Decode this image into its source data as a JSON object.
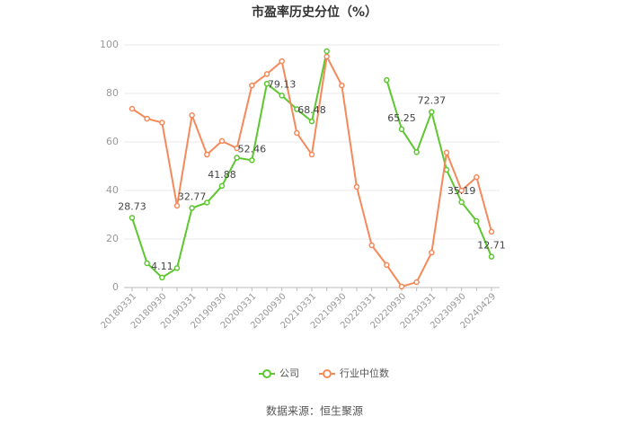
{
  "chart_data": {
    "type": "line",
    "title": "市盈率历史分位（%）",
    "categories": [
      "20180331",
      null,
      "20180930",
      null,
      "20190331",
      null,
      "20190930",
      null,
      "20200331",
      null,
      "20200930",
      null,
      "20210331",
      null,
      "20210930",
      null,
      "20220331",
      null,
      "20220930",
      null,
      "20230331",
      null,
      "20230930",
      null,
      "20240429"
    ],
    "series": [
      {
        "name": "公司",
        "color": "#5cc72e",
        "values": [
          28.73,
          10,
          4.11,
          8,
          32.77,
          35,
          41.88,
          53.5,
          52.46,
          84,
          79.13,
          73.5,
          68.48,
          97.4,
          null,
          null,
          null,
          85.5,
          65.25,
          55.8,
          72.37,
          48.5,
          35.19,
          27.4,
          12.71
        ],
        "value_labels": [
          "28.73",
          null,
          "4.11",
          null,
          "32.77",
          null,
          "41.88",
          null,
          "52.46",
          null,
          "79.13",
          null,
          "68.48",
          null,
          null,
          null,
          null,
          null,
          "65.25",
          null,
          "72.37",
          null,
          "35.19",
          null,
          "12.71"
        ]
      },
      {
        "name": "行业中位数",
        "color": "#f5895a",
        "values": [
          73.7,
          69.6,
          68,
          33.7,
          71,
          54.8,
          60.4,
          57.4,
          83.3,
          88,
          93.3,
          63.7,
          54.8,
          95.2,
          83.3,
          41.5,
          17.4,
          9.3,
          0.4,
          2.2,
          14.4,
          55.6,
          40,
          45.5,
          23
        ]
      }
    ],
    "ylim": [
      0,
      100
    ],
    "yticks": [
      0,
      20,
      40,
      60,
      80,
      100
    ],
    "grid": true,
    "legend": "bottom",
    "source": "数据来源：恒生聚源"
  }
}
